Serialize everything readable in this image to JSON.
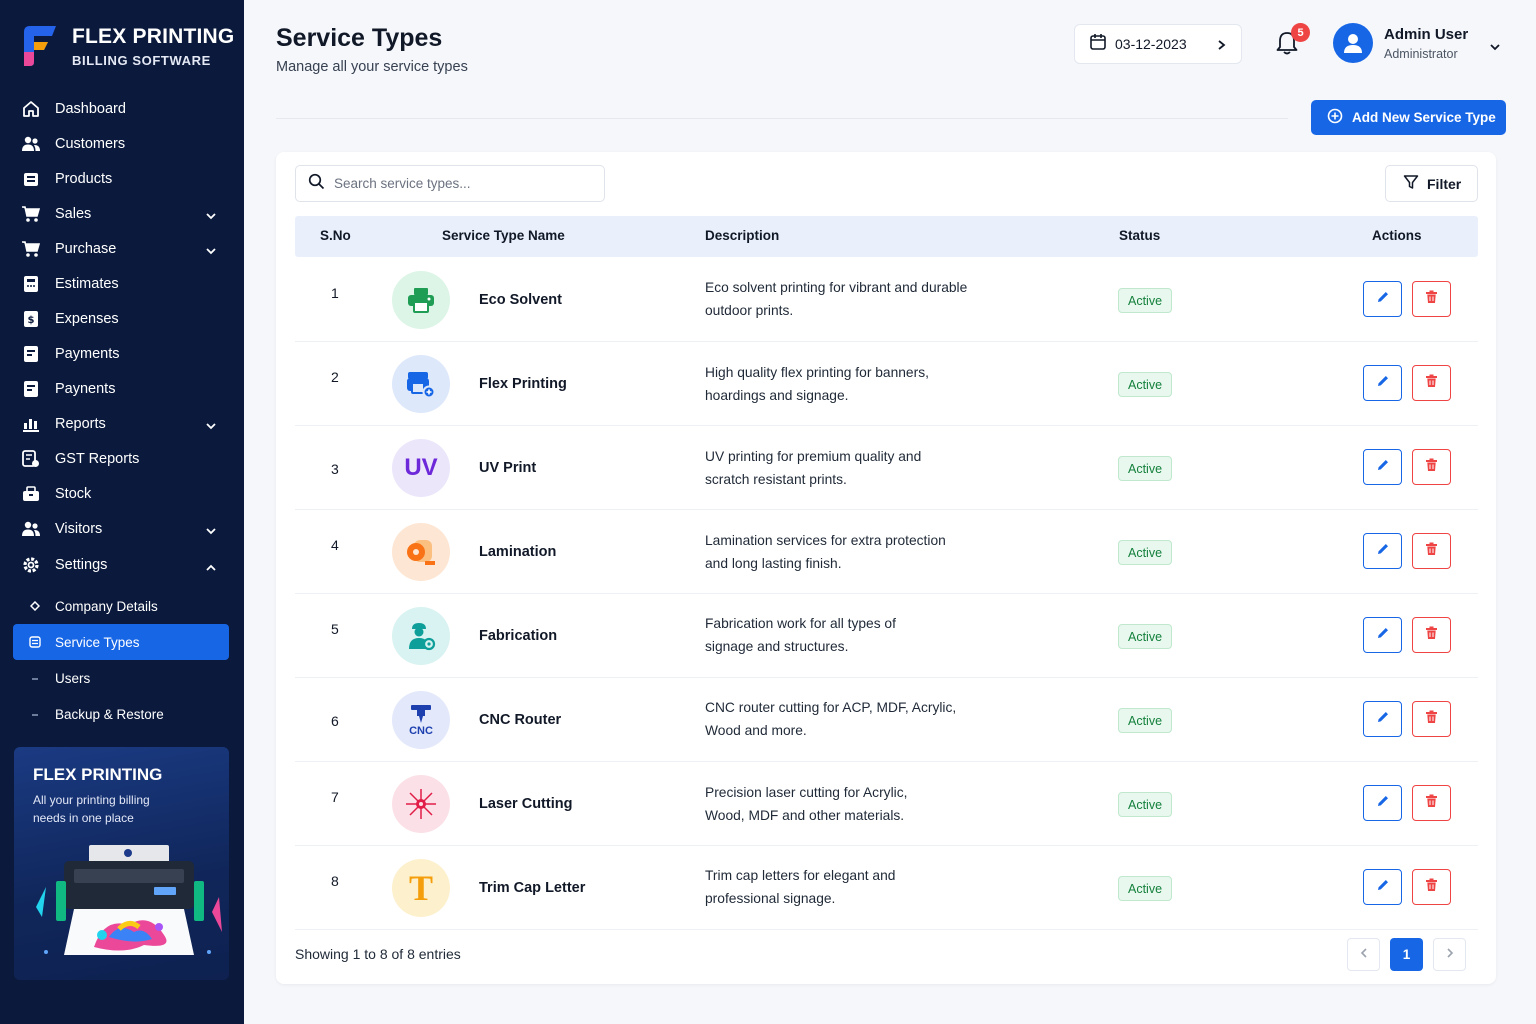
{
  "brand": {
    "title": "FLEX PRINTING",
    "subtitle": "BILLING SOFTWARE"
  },
  "sidebar": {
    "items": [
      {
        "label": "Dashboard",
        "icon": "home-icon"
      },
      {
        "label": "Customers",
        "icon": "users-icon"
      },
      {
        "label": "Products",
        "icon": "box-icon"
      },
      {
        "label": "Sales",
        "icon": "cart-icon",
        "expandable": true
      },
      {
        "label": "Purchase",
        "icon": "cart-icon",
        "expandable": true
      },
      {
        "label": "Estimates",
        "icon": "calculator-icon"
      },
      {
        "label": "Expenses",
        "icon": "wallet-icon"
      },
      {
        "label": "Payments",
        "icon": "wallet-icon"
      },
      {
        "label": "Paynents",
        "icon": "wallet-icon"
      },
      {
        "label": "Reports",
        "icon": "bar-chart-icon",
        "expandable": true
      },
      {
        "label": "GST Reports",
        "icon": "gst-icon"
      },
      {
        "label": "Stock",
        "icon": "stock-icon"
      },
      {
        "label": "Visitors",
        "icon": "users-icon",
        "expandable": true
      },
      {
        "label": "Settings",
        "icon": "gear-icon",
        "expanded": true
      }
    ],
    "settings_sub": [
      {
        "label": "Company Details"
      },
      {
        "label": "Service Types",
        "active": true
      },
      {
        "label": "Users"
      },
      {
        "label": "Backup & Restore"
      }
    ]
  },
  "promo": {
    "title": "FLEX PRINTING",
    "text": "All your printing billing needs in one place"
  },
  "header": {
    "title": "Service Types",
    "subtitle": "Manage all your service types",
    "date": "03-12-2023",
    "notifications": "5",
    "user_name": "Admin User",
    "user_role": "Administrator"
  },
  "toolbar": {
    "add_label": "Add New Service Type",
    "search_placeholder": "Search service types...",
    "filter_label": "Filter"
  },
  "table": {
    "columns": [
      "S.No",
      "Service Type Name",
      "Description",
      "Status",
      "Actions"
    ],
    "rows": [
      {
        "no": "1",
        "name": "Eco Solvent",
        "desc1": "Eco solvent printing for vibrant and durable",
        "desc2": "outdoor prints.",
        "status": "Active",
        "icon": "printer-icon",
        "color": "#1f9d55",
        "bg": "#dcf5e6"
      },
      {
        "no": "2",
        "name": "Flex Printing",
        "desc1": "High quality flex printing for banners,",
        "desc2": "hoardings and signage.",
        "status": "Active",
        "icon": "flex-print-icon",
        "color": "#1766e6",
        "bg": "#dde8fb"
      },
      {
        "no": "3",
        "name": "UV Print",
        "desc1": "UV printing for premium quality and",
        "desc2": "scratch resistant prints.",
        "status": "Active",
        "icon": "uv-icon",
        "icon_text": "UV",
        "color": "#6d28d9",
        "bg": "#ece6fb"
      },
      {
        "no": "4",
        "name": "Lamination",
        "desc1": "Lamination services for extra protection",
        "desc2": "and long lasting finish.",
        "status": "Active",
        "icon": "lamination-roll-icon",
        "color": "#f97316",
        "bg": "#fde6d3"
      },
      {
        "no": "5",
        "name": "Fabrication",
        "desc1": "Fabrication work for all types of",
        "desc2": "signage and structures.",
        "status": "Active",
        "icon": "worker-icon",
        "color": "#0e9f9a",
        "bg": "#d8f3f1"
      },
      {
        "no": "6",
        "name": "CNC Router",
        "desc1": "CNC router cutting for ACP, MDF, Acrylic,",
        "desc2": "Wood and more.",
        "status": "Active",
        "icon": "cnc-icon",
        "icon_text": "CNC",
        "color": "#1e40af",
        "bg": "#e3e9fb"
      },
      {
        "no": "7",
        "name": "Laser Cutting",
        "desc1": "Precision laser cutting for Acrylic,",
        "desc2": "Wood, MDF and other materials.",
        "status": "Active",
        "icon": "laser-icon",
        "color": "#e11d48",
        "bg": "#fbe1e7"
      },
      {
        "no": "8",
        "name": "Trim Cap Letter",
        "desc1": "Trim cap letters for elegant and",
        "desc2": "professional signage.",
        "status": "Active",
        "icon": "trim-cap-letter-icon",
        "icon_text": "T",
        "color": "#f59e0b",
        "bg": "#fdf0cc"
      }
    ]
  },
  "footer": {
    "showing": "Showing 1 to 8 of 8 entries",
    "page": "1"
  },
  "colors": {
    "accent": "#1766e6",
    "sidebar": "#0b1a3c",
    "danger": "#ef4444",
    "success": "#15803d"
  }
}
